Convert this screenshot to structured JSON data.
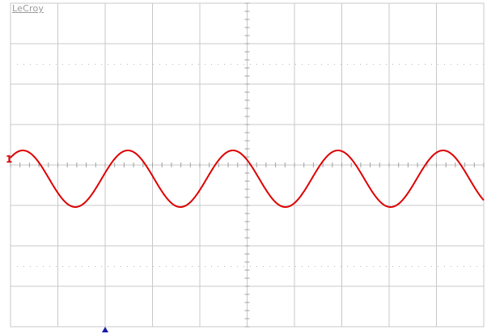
{
  "brand": "LeCroy",
  "channel": {
    "label": "1",
    "color": "#dd0000"
  },
  "grid": {
    "divisions_x": 10,
    "divisions_y": 8,
    "line_color": "#c8c8c8",
    "tick_color": "#a0a0a0",
    "minor_ticks_per_division": 5
  },
  "trigger_marker": {
    "color": "#1a1aaa",
    "position_divisions": 2
  },
  "chart_data": {
    "type": "line",
    "series": [
      {
        "color": "#dd0000",
        "waveform": "sine",
        "offset_divisions": -0.34,
        "amplitude_divisions": 0.7,
        "period_divisions": 2.22,
        "phase_peak_divisions": 0.26
      }
    ],
    "xlim": [
      0,
      10
    ],
    "ylim": [
      -4,
      4
    ]
  }
}
